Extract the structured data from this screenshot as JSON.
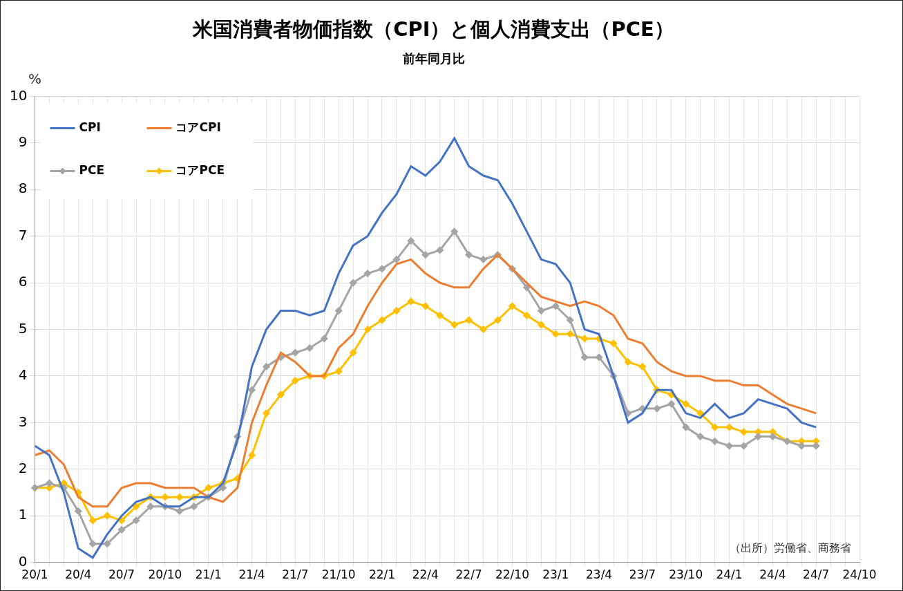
{
  "chart_data": {
    "type": "line",
    "title": "米国消費者物価指数（CPI）と個人消費支出（PCE）",
    "subtitle": "前年同月比",
    "ylabel": "%",
    "annotations": [
      "（出所）労働省、商務省"
    ],
    "categories": [
      "20/1",
      null,
      null,
      "20/4",
      null,
      null,
      "20/7",
      null,
      null,
      "20/10",
      null,
      null,
      "21/1",
      null,
      null,
      "21/4",
      null,
      null,
      "21/7",
      null,
      null,
      "21/10",
      null,
      null,
      "22/1",
      null,
      null,
      "22/4",
      null,
      null,
      "22/7",
      null,
      null,
      "22/10",
      null,
      null,
      "23/1",
      null,
      null,
      "23/4",
      null,
      null,
      "23/7",
      null,
      null,
      "23/10",
      null,
      null,
      "24/1",
      null,
      null,
      "24/4",
      null,
      null,
      "24/7",
      null,
      null,
      "24/10"
    ],
    "series": [
      {
        "name": "CPI",
        "color": "#4472c4",
        "values": [
          2.5,
          2.3,
          1.5,
          0.3,
          0.1,
          0.6,
          1.0,
          1.3,
          1.4,
          1.2,
          1.2,
          1.4,
          1.4,
          1.7,
          2.6,
          4.2,
          5.0,
          5.4,
          5.4,
          5.3,
          5.4,
          6.2,
          6.8,
          7.0,
          7.5,
          7.9,
          8.5,
          8.3,
          8.6,
          9.1,
          8.5,
          8.3,
          8.2,
          7.7,
          7.1,
          6.5,
          6.4,
          6.0,
          5.0,
          4.9,
          4.0,
          3.0,
          3.2,
          3.7,
          3.7,
          3.2,
          3.1,
          3.4,
          3.1,
          3.2,
          3.5,
          3.4,
          3.3,
          3.0,
          2.9,
          null,
          null,
          null
        ]
      },
      {
        "name": "コアCPI",
        "color": "#ed7d31",
        "values": [
          2.3,
          2.4,
          2.1,
          1.4,
          1.2,
          1.2,
          1.6,
          1.7,
          1.7,
          1.6,
          1.6,
          1.6,
          1.4,
          1.3,
          1.6,
          3.0,
          3.8,
          4.5,
          4.3,
          4.0,
          4.0,
          4.6,
          4.9,
          5.5,
          6.0,
          6.4,
          6.5,
          6.2,
          6.0,
          5.9,
          5.9,
          6.3,
          6.6,
          6.3,
          6.0,
          5.7,
          5.6,
          5.5,
          5.6,
          5.5,
          5.3,
          4.8,
          4.7,
          4.3,
          4.1,
          4.0,
          4.0,
          3.9,
          3.9,
          3.8,
          3.8,
          3.6,
          3.4,
          3.3,
          3.2,
          null,
          null,
          null
        ]
      },
      {
        "name": "PCE",
        "color": "#a5a5a5",
        "marker": "diamond",
        "values": [
          1.6,
          1.7,
          1.6,
          1.1,
          0.4,
          0.4,
          0.7,
          0.9,
          1.2,
          1.2,
          1.1,
          1.2,
          1.4,
          1.6,
          2.7,
          3.7,
          4.2,
          4.4,
          4.5,
          4.6,
          4.8,
          5.4,
          6.0,
          6.2,
          6.3,
          6.5,
          6.9,
          6.6,
          6.7,
          7.1,
          6.6,
          6.5,
          6.6,
          6.3,
          5.9,
          5.4,
          5.5,
          5.2,
          4.4,
          4.4,
          4.0,
          3.2,
          3.3,
          3.3,
          3.4,
          2.9,
          2.7,
          2.6,
          2.5,
          2.5,
          2.7,
          2.7,
          2.6,
          2.5,
          2.5,
          null,
          null,
          null
        ]
      },
      {
        "name": "コアPCE",
        "color": "#ffc000",
        "marker": "diamond",
        "values": [
          1.6,
          1.6,
          1.7,
          1.5,
          0.9,
          1.0,
          0.9,
          1.2,
          1.4,
          1.4,
          1.4,
          1.4,
          1.6,
          1.7,
          1.8,
          2.3,
          3.2,
          3.6,
          3.9,
          4.0,
          4.0,
          4.1,
          4.5,
          5.0,
          5.2,
          5.4,
          5.6,
          5.5,
          5.3,
          5.1,
          5.2,
          5.0,
          5.2,
          5.5,
          5.3,
          5.1,
          4.9,
          4.9,
          4.8,
          4.8,
          4.7,
          4.3,
          4.2,
          3.7,
          3.6,
          3.4,
          3.2,
          2.9,
          2.9,
          2.8,
          2.8,
          2.8,
          2.6,
          2.6,
          2.6,
          null,
          null,
          null
        ]
      }
    ],
    "ylim": [
      0,
      10
    ],
    "yticks": [
      0,
      1,
      2,
      3,
      4,
      5,
      6,
      7,
      8,
      9,
      10
    ],
    "grid": true,
    "legend": "upper left"
  }
}
